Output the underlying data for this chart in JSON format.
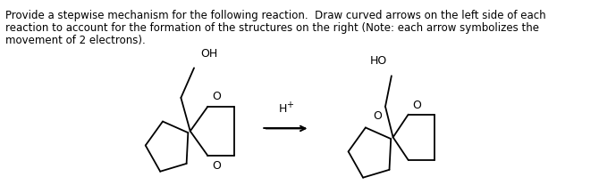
{
  "text_line1": "Provide a stepwise mechanism for the following reaction.  Draw curved arrows on the left side of each",
  "text_line2": "reaction to account for the formation of the structures on the right (Note: each arrow symbolizes the",
  "text_line3": "movement of 2 electrons).",
  "bg_color": "#ffffff",
  "text_color": "#000000",
  "line_color": "#000000",
  "font_size_text": 8.5,
  "font_size_label": 9.0
}
